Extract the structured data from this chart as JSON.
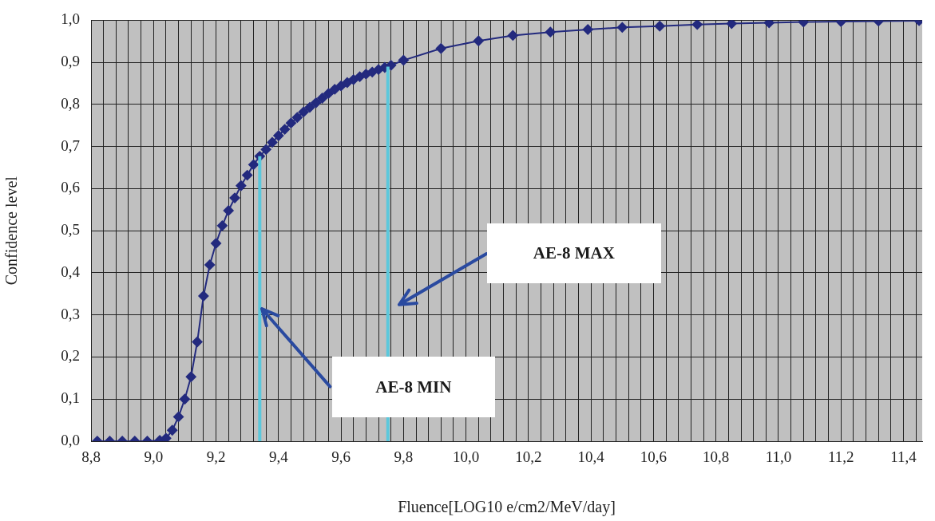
{
  "chart_data": {
    "type": "line",
    "xlabel": "Fluence[LOG10 e/cm2/MeV/day]",
    "ylabel": "Confidence level",
    "xlim": [
      8.8,
      11.46
    ],
    "ylim": [
      0,
      1
    ],
    "xticks": [
      {
        "value": 8.8,
        "label": "8,8"
      },
      {
        "value": 8.84,
        "label": null
      },
      {
        "value": 8.88,
        "label": null
      },
      {
        "value": 8.92,
        "label": null
      },
      {
        "value": 8.96,
        "label": null
      },
      {
        "value": 9.0,
        "label": "9,0"
      },
      {
        "value": 9.04,
        "label": null
      },
      {
        "value": 9.08,
        "label": null
      },
      {
        "value": 9.12,
        "label": null
      },
      {
        "value": 9.16,
        "label": null
      },
      {
        "value": 9.2,
        "label": "9,2"
      },
      {
        "value": 9.24,
        "label": null
      },
      {
        "value": 9.28,
        "label": null
      },
      {
        "value": 9.32,
        "label": null
      },
      {
        "value": 9.36,
        "label": null
      },
      {
        "value": 9.4,
        "label": "9,4"
      },
      {
        "value": 9.44,
        "label": null
      },
      {
        "value": 9.48,
        "label": null
      },
      {
        "value": 9.52,
        "label": null
      },
      {
        "value": 9.56,
        "label": null
      },
      {
        "value": 9.6,
        "label": "9,6"
      },
      {
        "value": 9.64,
        "label": null
      },
      {
        "value": 9.68,
        "label": null
      },
      {
        "value": 9.72,
        "label": null
      },
      {
        "value": 9.76,
        "label": null
      },
      {
        "value": 9.8,
        "label": "9,8"
      },
      {
        "value": 9.84,
        "label": null
      },
      {
        "value": 9.88,
        "label": null
      },
      {
        "value": 9.92,
        "label": null
      },
      {
        "value": 9.96,
        "label": null
      },
      {
        "value": 10.0,
        "label": "10,0"
      },
      {
        "value": 10.04,
        "label": null
      },
      {
        "value": 10.08,
        "label": null
      },
      {
        "value": 10.12,
        "label": null
      },
      {
        "value": 10.16,
        "label": null
      },
      {
        "value": 10.2,
        "label": "10,2"
      },
      {
        "value": 10.24,
        "label": null
      },
      {
        "value": 10.28,
        "label": null
      },
      {
        "value": 10.32,
        "label": null
      },
      {
        "value": 10.36,
        "label": null
      },
      {
        "value": 10.4,
        "label": "10,4"
      },
      {
        "value": 10.44,
        "label": null
      },
      {
        "value": 10.48,
        "label": null
      },
      {
        "value": 10.52,
        "label": null
      },
      {
        "value": 10.56,
        "label": null
      },
      {
        "value": 10.6,
        "label": "10,6"
      },
      {
        "value": 10.64,
        "label": null
      },
      {
        "value": 10.68,
        "label": null
      },
      {
        "value": 10.72,
        "label": null
      },
      {
        "value": 10.76,
        "label": null
      },
      {
        "value": 10.8,
        "label": "10,8"
      },
      {
        "value": 10.84,
        "label": null
      },
      {
        "value": 10.88,
        "label": null
      },
      {
        "value": 10.92,
        "label": null
      },
      {
        "value": 10.96,
        "label": null
      },
      {
        "value": 11.0,
        "label": "11,0"
      },
      {
        "value": 11.04,
        "label": null
      },
      {
        "value": 11.08,
        "label": null
      },
      {
        "value": 11.12,
        "label": null
      },
      {
        "value": 11.16,
        "label": null
      },
      {
        "value": 11.2,
        "label": "11,2"
      },
      {
        "value": 11.24,
        "label": null
      },
      {
        "value": 11.28,
        "label": null
      },
      {
        "value": 11.32,
        "label": null
      },
      {
        "value": 11.36,
        "label": null
      },
      {
        "value": 11.4,
        "label": "11,4"
      },
      {
        "value": 11.44,
        "label": null
      }
    ],
    "yticks": [
      {
        "value": 0,
        "label": "0,0"
      },
      {
        "value": 0.1,
        "label": "0,1"
      },
      {
        "value": 0.2,
        "label": "0,2"
      },
      {
        "value": 0.3,
        "label": "0,3"
      },
      {
        "value": 0.4,
        "label": "0,4"
      },
      {
        "value": 0.5,
        "label": "0,5"
      },
      {
        "value": 0.6,
        "label": "0,6"
      },
      {
        "value": 0.7,
        "label": "0,7"
      },
      {
        "value": 0.8,
        "label": "0,8"
      },
      {
        "value": 0.9,
        "label": "0,9"
      },
      {
        "value": 1.0,
        "label": "1,0"
      }
    ],
    "grid": true,
    "legend": false,
    "marker": "diamond",
    "line_style": "solid",
    "series": [
      {
        "color": "#232a7e",
        "x": [
          8.82,
          8.86,
          8.9,
          8.94,
          8.98,
          9.02,
          9.04,
          9.06,
          9.08,
          9.1,
          9.12,
          9.14,
          9.16,
          9.18,
          9.2,
          9.22,
          9.24,
          9.26,
          9.28,
          9.3,
          9.32,
          9.34,
          9.36,
          9.38,
          9.4,
          9.42,
          9.44,
          9.46,
          9.48,
          9.5,
          9.52,
          9.54,
          9.56,
          9.58,
          9.6,
          9.62,
          9.64,
          9.66,
          9.68,
          9.7,
          9.72,
          9.74,
          9.76,
          9.8,
          9.92,
          10.04,
          10.15,
          10.27,
          10.39,
          10.5,
          10.62,
          10.74,
          10.85,
          10.97,
          11.08,
          11.2,
          11.32,
          11.45
        ],
        "values": [
          0,
          0,
          0,
          0,
          0,
          0.002,
          0.007,
          0.026,
          0.058,
          0.1,
          0.153,
          0.236,
          0.345,
          0.419,
          0.47,
          0.512,
          0.548,
          0.578,
          0.607,
          0.632,
          0.657,
          0.677,
          0.693,
          0.71,
          0.726,
          0.741,
          0.756,
          0.769,
          0.782,
          0.793,
          0.804,
          0.815,
          0.826,
          0.836,
          0.844,
          0.852,
          0.859,
          0.866,
          0.872,
          0.877,
          0.883,
          0.888,
          0.893,
          0.905,
          0.933,
          0.951,
          0.964,
          0.972,
          0.978,
          0.983,
          0.986,
          0.99,
          0.992,
          0.994,
          0.996,
          0.997,
          0.998,
          0.999
        ]
      },
      {
        "color": "#5bc8dc",
        "marker": "none",
        "x": [
          9.34,
          9.34
        ],
        "values": [
          0,
          0.677
        ]
      },
      {
        "color": "#5bc8dc",
        "marker": "none",
        "x": [
          9.75,
          9.75
        ],
        "values": [
          0,
          0.89
        ]
      }
    ],
    "annotations": [
      "AE-8 MIN",
      "AE-8 MAX"
    ]
  }
}
